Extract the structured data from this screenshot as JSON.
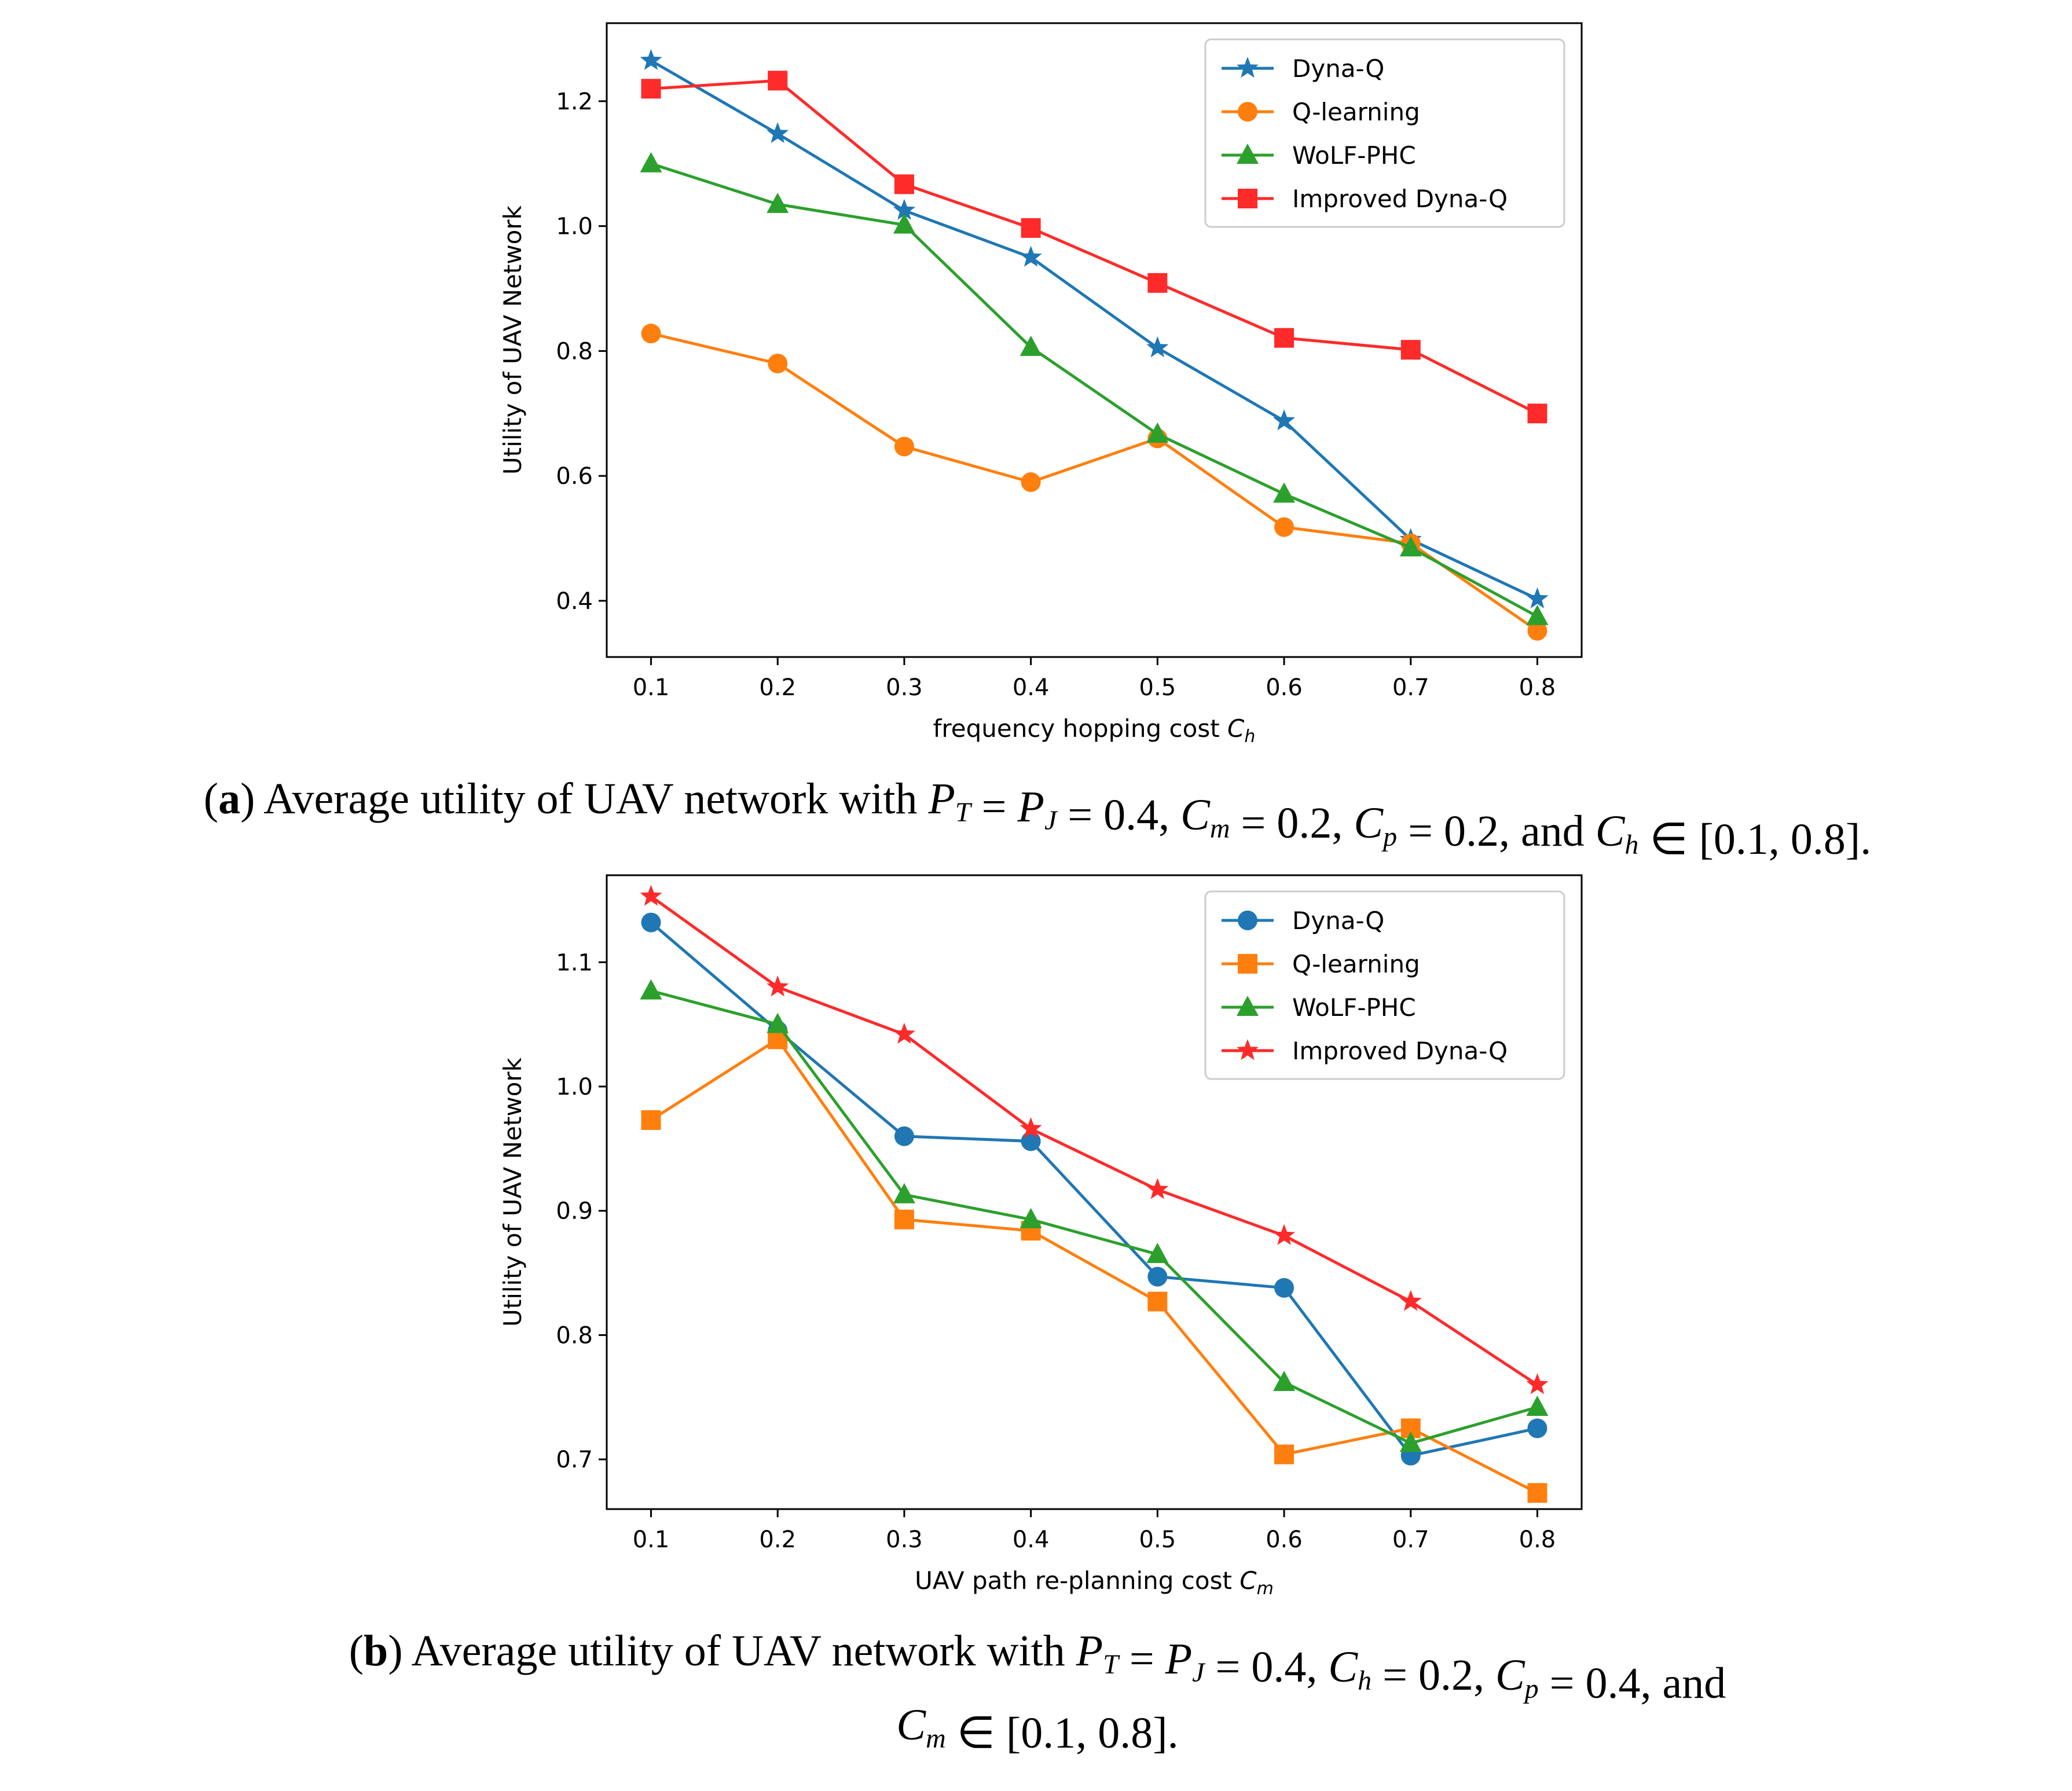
{
  "chart_data": [
    {
      "type": "line",
      "xlabel": "frequency hopping cost",
      "xlabel_symbol": "C",
      "xlabel_sub": "h",
      "ylabel": "Utility of UAV Network",
      "x": [
        0.1,
        0.2,
        0.3,
        0.4,
        0.5,
        0.6,
        0.7,
        0.8
      ],
      "xticks": [
        "0.1",
        "0.2",
        "0.3",
        "0.4",
        "0.5",
        "0.6",
        "0.7",
        "0.8"
      ],
      "yticks": [
        "0.4",
        "0.6",
        "0.8",
        "1.0",
        "1.2"
      ],
      "ytick_values": [
        0.4,
        0.6,
        0.8,
        1.0,
        1.2
      ],
      "xlim": [
        0.065,
        0.835
      ],
      "ylim": [
        0.31,
        1.325
      ],
      "legend_position": "top-right",
      "series": [
        {
          "name": "Dyna-Q",
          "color": "#1f77b4",
          "marker": "star",
          "values": [
            1.265,
            1.148,
            1.025,
            0.95,
            0.805,
            0.688,
            0.498,
            0.403
          ]
        },
        {
          "name": "Q-learning",
          "color": "#ff7f0e",
          "marker": "circle",
          "values": [
            0.828,
            0.78,
            0.647,
            0.59,
            0.66,
            0.518,
            0.492,
            0.352
          ]
        },
        {
          "name": "WoLF-PHC",
          "color": "#2ca02c",
          "marker": "triangle",
          "values": [
            1.1,
            1.035,
            1.002,
            0.806,
            0.667,
            0.571,
            0.485,
            0.375
          ]
        },
        {
          "name": "Improved Dyna-Q",
          "color": "#ff2a2a",
          "marker": "square",
          "values": [
            1.22,
            1.233,
            1.067,
            0.997,
            0.909,
            0.821,
            0.802,
            0.7
          ]
        }
      ],
      "caption": {
        "label": "a",
        "text": "Average utility of UAV network with",
        "params": [
          "P_T = P_J = 0.4",
          "C_m = 0.2",
          "C_p = 0.2",
          "C_h ∈ [0.1, 0.8]"
        ],
        "conj": "and"
      }
    },
    {
      "type": "line",
      "xlabel": "UAV path re-planning cost",
      "xlabel_symbol": "C",
      "xlabel_sub": "m",
      "ylabel": "Utility of UAV Network",
      "x": [
        0.1,
        0.2,
        0.3,
        0.4,
        0.5,
        0.6,
        0.7,
        0.8
      ],
      "xticks": [
        "0.1",
        "0.2",
        "0.3",
        "0.4",
        "0.5",
        "0.6",
        "0.7",
        "0.8"
      ],
      "yticks": [
        "0.7",
        "0.8",
        "0.9",
        "1.0",
        "1.1"
      ],
      "ytick_values": [
        0.7,
        0.8,
        0.9,
        1.0,
        1.1
      ],
      "xlim": [
        0.065,
        0.835
      ],
      "ylim": [
        0.66,
        1.17
      ],
      "legend_position": "top-right",
      "series": [
        {
          "name": "Dyna-Q",
          "color": "#1f77b4",
          "marker": "circle",
          "values": [
            1.132,
            1.045,
            0.96,
            0.956,
            0.847,
            0.838,
            0.703,
            0.725
          ]
        },
        {
          "name": "Q-learning",
          "color": "#ff7f0e",
          "marker": "square",
          "values": [
            0.973,
            1.038,
            0.893,
            0.884,
            0.827,
            0.704,
            0.725,
            0.673
          ]
        },
        {
          "name": "WoLF-PHC",
          "color": "#2ca02c",
          "marker": "triangle",
          "values": [
            1.077,
            1.05,
            0.913,
            0.893,
            0.865,
            0.762,
            0.713,
            0.742
          ]
        },
        {
          "name": "Improved Dyna-Q",
          "color": "#ff2a2a",
          "marker": "star",
          "values": [
            1.153,
            1.08,
            1.042,
            0.966,
            0.917,
            0.88,
            0.827,
            0.76
          ]
        }
      ],
      "caption": {
        "label": "b",
        "text": "Average utility of UAV network with",
        "params": [
          "P_T = P_J = 0.4",
          "C_h = 0.2",
          "C_p = 0.4",
          "C_m ∈ [0.1, 0.8]"
        ],
        "conj": "and"
      }
    }
  ]
}
